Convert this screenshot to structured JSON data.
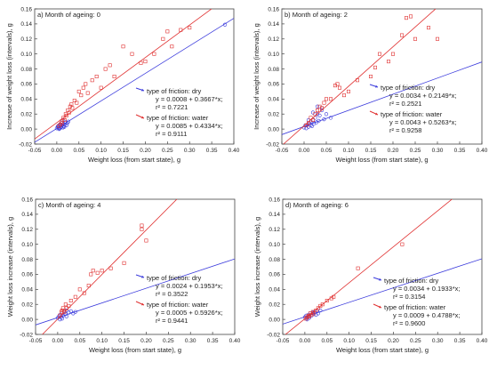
{
  "chart_data": [
    {
      "type": "scatter",
      "title": "a) Month of ageing: 0",
      "xlabel": "Weight loss (from start state), g",
      "ylabel": "Increase of weight loss (intervals), g",
      "xlim": [
        -0.05,
        0.4
      ],
      "ylim": [
        -0.02,
        0.16
      ],
      "xticks": [
        "-0.05",
        "0.00",
        "0.05",
        "0.10",
        "0.15",
        "0.20",
        "0.25",
        "0.30",
        "0.35",
        "0.40"
      ],
      "yticks": [
        "-0.02",
        "0.00",
        "0.02",
        "0.04",
        "0.06",
        "0.08",
        "0.10",
        "0.12",
        "0.14",
        "0.16"
      ],
      "series": [
        {
          "name": "type of friction: dry",
          "color": "#3b3bdc",
          "marker": "circle",
          "fit": {
            "intercept": 0.0008,
            "slope": 0.3667
          },
          "equation": "y = 0.0008 + 0.3667*x;",
          "r2_text": "r² = 0.7221",
          "x": [
            0.0,
            0.002,
            0.004,
            0.005,
            0.007,
            0.008,
            0.01,
            0.011,
            0.012,
            0.014,
            0.015,
            0.016,
            0.018,
            0.02,
            0.022,
            0.024,
            0.026,
            0.005,
            0.009,
            0.013,
            0.017,
            0.003,
            0.006,
            0.38
          ],
          "y": [
            0.001,
            0.003,
            0.002,
            0.005,
            0.001,
            0.006,
            0.003,
            0.008,
            0.005,
            0.002,
            0.007,
            0.004,
            0.006,
            0.009,
            0.005,
            0.008,
            0.01,
            0.0,
            0.002,
            0.012,
            0.003,
            0.004,
            0.001,
            0.139
          ]
        },
        {
          "name": "type of friction: water",
          "color": "#e03030",
          "marker": "square",
          "fit": {
            "intercept": 0.0085,
            "slope": 0.4334
          },
          "equation": "y = 0.0085 + 0.4334*x;",
          "r2_text": "r² = 0.9111",
          "x": [
            0.005,
            0.008,
            0.01,
            0.012,
            0.015,
            0.018,
            0.02,
            0.022,
            0.025,
            0.028,
            0.03,
            0.033,
            0.035,
            0.04,
            0.045,
            0.05,
            0.055,
            0.06,
            0.065,
            0.07,
            0.08,
            0.09,
            0.1,
            0.11,
            0.12,
            0.13,
            0.15,
            0.17,
            0.19,
            0.2,
            0.22,
            0.24,
            0.25,
            0.26,
            0.28,
            0.3
          ],
          "y": [
            0.004,
            0.006,
            0.01,
            0.008,
            0.015,
            0.012,
            0.02,
            0.018,
            0.025,
            0.022,
            0.03,
            0.033,
            0.028,
            0.038,
            0.035,
            0.05,
            0.045,
            0.055,
            0.06,
            0.048,
            0.065,
            0.07,
            0.055,
            0.08,
            0.085,
            0.07,
            0.11,
            0.1,
            0.088,
            0.09,
            0.1,
            0.12,
            0.13,
            0.11,
            0.132,
            0.135
          ]
        }
      ]
    },
    {
      "type": "scatter",
      "title": "b) Month of ageing: 2",
      "xlabel": "Weight loss (from start state), g",
      "ylabel": "Increase of weight loss (intervals), g",
      "xlim": [
        -0.05,
        0.4
      ],
      "ylim": [
        -0.02,
        0.16
      ],
      "xticks": [
        "-0.05",
        "0.00",
        "0.05",
        "0.10",
        "0.15",
        "0.20",
        "0.25",
        "0.30",
        "0.35",
        "0.40"
      ],
      "yticks": [
        "-0.02",
        "0.00",
        "0.02",
        "0.04",
        "0.06",
        "0.08",
        "0.10",
        "0.12",
        "0.14",
        "0.16"
      ],
      "series": [
        {
          "name": "type of friction: dry",
          "color": "#3b3bdc",
          "marker": "circle",
          "fit": {
            "intercept": 0.0034,
            "slope": 0.2149
          },
          "equation": "y = 0.0034 + 0.2149*x;",
          "r2_text": "r² = 0.2521",
          "x": [
            0.0,
            0.003,
            0.005,
            0.008,
            0.01,
            0.012,
            0.015,
            0.018,
            0.02,
            0.022,
            0.025,
            0.028,
            0.03,
            0.033,
            0.035,
            0.04,
            0.045,
            0.05,
            0.06,
            0.03,
            0.02,
            0.01,
            0.04,
            0.015
          ],
          "y": [
            0.002,
            0.005,
            0.001,
            0.006,
            0.003,
            0.008,
            0.01,
            0.004,
            0.012,
            0.007,
            0.015,
            0.009,
            0.02,
            0.011,
            0.018,
            0.025,
            0.013,
            0.02,
            0.015,
            0.03,
            0.022,
            0.012,
            0.028,
            0.005
          ]
        },
        {
          "name": "type of friction: water",
          "color": "#e03030",
          "marker": "square",
          "fit": {
            "intercept": 0.0043,
            "slope": 0.5263
          },
          "equation": "y = 0.0043 + 0.5263*x;",
          "r2_text": "r² = 0.9258",
          "x": [
            0.005,
            0.01,
            0.015,
            0.02,
            0.025,
            0.03,
            0.035,
            0.04,
            0.045,
            0.05,
            0.06,
            0.07,
            0.075,
            0.08,
            0.09,
            0.1,
            0.12,
            0.15,
            0.16,
            0.17,
            0.19,
            0.2,
            0.22,
            0.23,
            0.24,
            0.25,
            0.28,
            0.3
          ],
          "y": [
            0.005,
            0.008,
            0.015,
            0.012,
            0.02,
            0.025,
            0.03,
            0.028,
            0.035,
            0.04,
            0.04,
            0.058,
            0.06,
            0.055,
            0.045,
            0.05,
            0.065,
            0.07,
            0.082,
            0.1,
            0.09,
            0.1,
            0.125,
            0.148,
            0.15,
            0.12,
            0.135,
            0.12
          ]
        }
      ]
    },
    {
      "type": "scatter",
      "title": "c) Month of ageing: 4",
      "xlabel": "Weight loss (from start state), g",
      "ylabel": "Weight loss increase (intervals), g",
      "xlim": [
        -0.05,
        0.4
      ],
      "ylim": [
        -0.02,
        0.16
      ],
      "xticks": [
        "-0.05",
        "0.00",
        "0.05",
        "0.10",
        "0.15",
        "0.20",
        "0.25",
        "0.30",
        "0.35",
        "0.40"
      ],
      "yticks": [
        "-0.02",
        "0.00",
        "0.02",
        "0.04",
        "0.06",
        "0.08",
        "0.10",
        "0.12",
        "0.14",
        "0.16"
      ],
      "series": [
        {
          "name": "type of friction: dry",
          "color": "#3b3bdc",
          "marker": "circle",
          "fit": {
            "intercept": 0.0024,
            "slope": 0.1953
          },
          "equation": "y = 0.0024 + 0.1953*x;",
          "r2_text": "r² = 0.3522",
          "x": [
            0.0,
            0.003,
            0.005,
            0.008,
            0.01,
            0.012,
            0.015,
            0.018,
            0.02,
            0.025,
            0.03,
            0.035,
            0.04,
            0.005,
            0.01,
            0.02
          ],
          "y": [
            0.002,
            0.004,
            0.006,
            0.003,
            0.008,
            0.005,
            0.01,
            0.007,
            0.012,
            0.009,
            0.011,
            0.008,
            0.01,
            0.0,
            0.001,
            0.004
          ]
        },
        {
          "name": "type of friction: water",
          "color": "#e03030",
          "marker": "square",
          "fit": {
            "intercept": 0.0005,
            "slope": 0.5926
          },
          "equation": "y = 0.0005 + 0.5926*x;",
          "r2_text": "r² = 0.9441",
          "x": [
            0.005,
            0.008,
            0.01,
            0.012,
            0.015,
            0.018,
            0.02,
            0.025,
            0.03,
            0.04,
            0.05,
            0.06,
            0.07,
            0.075,
            0.08,
            0.09,
            0.1,
            0.12,
            0.15,
            0.19,
            0.19,
            0.2
          ],
          "y": [
            0.005,
            0.01,
            0.012,
            0.015,
            0.01,
            0.02,
            0.015,
            0.018,
            0.025,
            0.03,
            0.04,
            0.035,
            0.045,
            0.06,
            0.065,
            0.062,
            0.065,
            0.068,
            0.075,
            0.12,
            0.125,
            0.105
          ]
        }
      ]
    },
    {
      "type": "scatter",
      "title": "d) Month of ageing: 6",
      "xlabel": "Weight loss (from start state), g",
      "ylabel": "Weight loss increase (intervals), g",
      "xlim": [
        -0.05,
        0.4
      ],
      "ylim": [
        -0.02,
        0.16
      ],
      "xticks": [
        "-0.05",
        "0.00",
        "0.05",
        "0.10",
        "0.15",
        "0.20",
        "0.25",
        "0.30",
        "0.35",
        "0.40"
      ],
      "yticks": [
        "-0.02",
        "0.00",
        "0.02",
        "0.04",
        "0.06",
        "0.08",
        "0.10",
        "0.12",
        "0.14",
        "0.16"
      ],
      "series": [
        {
          "name": "type of friction: dry",
          "color": "#3b3bdc",
          "marker": "circle",
          "fit": {
            "intercept": 0.0034,
            "slope": 0.1933
          },
          "equation": "y = 0.0034 + 0.1933*x;",
          "r2_text": "r² = 0.3154",
          "x": [
            0.0,
            0.003,
            0.005,
            0.008,
            0.01,
            0.012,
            0.015,
            0.018,
            0.02,
            0.022,
            0.025,
            0.028,
            0.03,
            0.035,
            0.005,
            0.01
          ],
          "y": [
            0.003,
            0.005,
            0.002,
            0.006,
            0.004,
            0.008,
            0.005,
            0.009,
            0.007,
            0.01,
            0.006,
            0.011,
            0.008,
            0.012,
            0.0,
            0.002
          ]
        },
        {
          "name": "type of friction: water",
          "color": "#e03030",
          "marker": "square",
          "fit": {
            "intercept": 0.0009,
            "slope": 0.4788
          },
          "equation": "y = 0.0009 + 0.4788*x;",
          "r2_text": "r² = 0.9600",
          "x": [
            0.002,
            0.005,
            0.008,
            0.01,
            0.012,
            0.015,
            0.018,
            0.02,
            0.025,
            0.03,
            0.035,
            0.04,
            0.05,
            0.06,
            0.065,
            0.12,
            0.22
          ],
          "y": [
            0.001,
            0.003,
            0.005,
            0.004,
            0.008,
            0.006,
            0.01,
            0.008,
            0.012,
            0.015,
            0.018,
            0.02,
            0.025,
            0.028,
            0.03,
            0.068,
            0.1
          ]
        }
      ]
    }
  ]
}
